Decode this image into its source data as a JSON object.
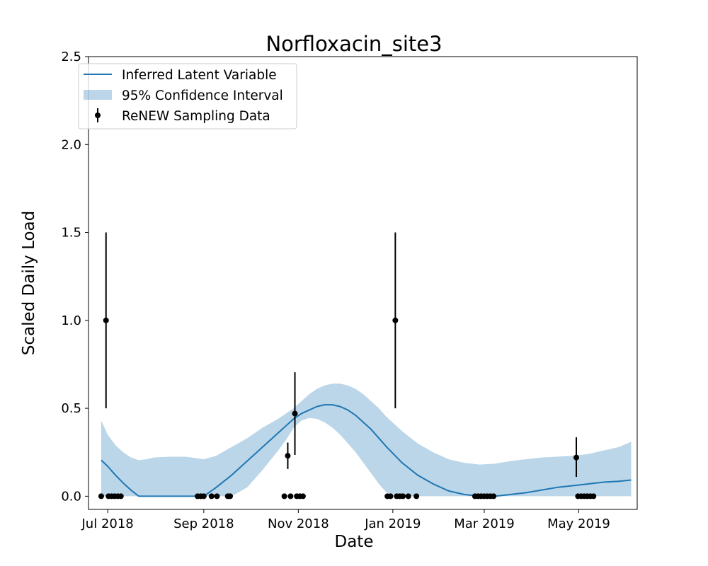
{
  "chart_data": {
    "type": "line",
    "title": "Norfloxacin_site3",
    "xlabel": "Date",
    "ylabel": "Scaled Daily Load",
    "grid": false,
    "legend_position": "top-left",
    "x_unit": "days since 2018-07-01",
    "xlim": [
      -12.4,
      341.7
    ],
    "ylim": [
      -0.075,
      2.5
    ],
    "x_ticks": [
      {
        "value": 0,
        "label": "Jul 2018"
      },
      {
        "value": 62,
        "label": "Sep 2018"
      },
      {
        "value": 123,
        "label": "Nov 2018"
      },
      {
        "value": 184,
        "label": "Jan 2019"
      },
      {
        "value": 243,
        "label": "Mar 2019"
      },
      {
        "value": 304,
        "label": "May 2019"
      }
    ],
    "y_ticks": [
      {
        "value": 0.0,
        "label": "0.0"
      },
      {
        "value": 0.5,
        "label": "0.5"
      },
      {
        "value": 1.0,
        "label": "1.0"
      },
      {
        "value": 1.5,
        "label": "1.5"
      },
      {
        "value": 2.0,
        "label": "2.0"
      },
      {
        "value": 2.5,
        "label": "2.5"
      }
    ],
    "legend": [
      {
        "key": "latent",
        "label": "Inferred Latent Variable"
      },
      {
        "key": "ci",
        "label": "95% Confidence Interval"
      },
      {
        "key": "data",
        "label": "ReNEW Sampling Data"
      }
    ],
    "series": [
      {
        "name": "Inferred Latent Variable",
        "key": "latent",
        "color": "#1f77b4",
        "x": [
          -4.2,
          0,
          5,
          10,
          15,
          20,
          25,
          30,
          40,
          50,
          62,
          70,
          80,
          90,
          100,
          110,
          115,
          120,
          125,
          130,
          135,
          140,
          145,
          150,
          155,
          160,
          165,
          170,
          175,
          180,
          190,
          200,
          210,
          220,
          230,
          240,
          250,
          260,
          270,
          280,
          290,
          300,
          310,
          320,
          330,
          337.8
        ],
        "y": [
          0.205,
          0.17,
          0.12,
          0.075,
          0.035,
          0.0,
          0.0,
          0.0,
          0.0,
          0.0,
          0.0,
          0.05,
          0.12,
          0.2,
          0.28,
          0.36,
          0.4,
          0.44,
          0.47,
          0.49,
          0.51,
          0.52,
          0.52,
          0.51,
          0.49,
          0.46,
          0.42,
          0.38,
          0.33,
          0.28,
          0.19,
          0.12,
          0.07,
          0.03,
          0.01,
          0.0,
          0.0,
          0.01,
          0.02,
          0.035,
          0.05,
          0.06,
          0.07,
          0.08,
          0.085,
          0.092
        ]
      },
      {
        "name": "95% Confidence Interval",
        "key": "ci",
        "color": "#1f77b4",
        "opacity": 0.3,
        "x": [
          -4.2,
          0,
          5,
          10,
          15,
          20,
          25,
          30,
          40,
          50,
          62,
          70,
          80,
          90,
          100,
          110,
          115,
          120,
          125,
          130,
          135,
          140,
          145,
          150,
          155,
          160,
          165,
          170,
          175,
          180,
          190,
          200,
          210,
          220,
          230,
          240,
          250,
          260,
          270,
          280,
          290,
          300,
          310,
          320,
          330,
          337.8
        ],
        "lower": [
          0.0,
          0.0,
          0.0,
          0.0,
          0.0,
          0.0,
          0.0,
          0.0,
          0.0,
          0.0,
          0.0,
          0.0,
          0.0,
          0.05,
          0.15,
          0.26,
          0.32,
          0.39,
          0.43,
          0.445,
          0.44,
          0.42,
          0.39,
          0.35,
          0.3,
          0.25,
          0.19,
          0.13,
          0.07,
          0.02,
          0.0,
          0.0,
          0.0,
          0.0,
          0.0,
          0.0,
          0.0,
          0.0,
          0.0,
          0.0,
          0.0,
          0.0,
          0.0,
          0.0,
          0.0,
          0.0
        ],
        "upper": [
          0.43,
          0.35,
          0.29,
          0.25,
          0.22,
          0.205,
          0.21,
          0.22,
          0.225,
          0.225,
          0.21,
          0.23,
          0.28,
          0.33,
          0.39,
          0.44,
          0.47,
          0.5,
          0.54,
          0.58,
          0.61,
          0.63,
          0.64,
          0.64,
          0.63,
          0.61,
          0.58,
          0.54,
          0.5,
          0.45,
          0.37,
          0.3,
          0.25,
          0.21,
          0.19,
          0.18,
          0.185,
          0.2,
          0.21,
          0.22,
          0.225,
          0.23,
          0.24,
          0.26,
          0.28,
          0.31
        ]
      },
      {
        "name": "ReNEW Sampling Data",
        "key": "data",
        "color": "#000000",
        "points": [
          {
            "x": -4.2,
            "y": 0.0
          },
          {
            "x": -1.1,
            "y": 1.0,
            "err_low": 0.5,
            "err_high": 1.5
          },
          {
            "x": 0.5,
            "y": 0.0
          },
          {
            "x": 2.5,
            "y": 0.0
          },
          {
            "x": 4.5,
            "y": 0.0
          },
          {
            "x": 6.5,
            "y": 0.0
          },
          {
            "x": 8.5,
            "y": 0.0
          },
          {
            "x": 58.0,
            "y": 0.0
          },
          {
            "x": 60.0,
            "y": 0.0
          },
          {
            "x": 62.0,
            "y": 0.0
          },
          {
            "x": 67.0,
            "y": 0.0
          },
          {
            "x": 70.5,
            "y": 0.0
          },
          {
            "x": 77.5,
            "y": 0.0
          },
          {
            "x": 79.0,
            "y": 0.0
          },
          {
            "x": 114.0,
            "y": 0.0
          },
          {
            "x": 116.2,
            "y": 0.23,
            "err_low": 0.155,
            "err_high": 0.305
          },
          {
            "x": 118.0,
            "y": 0.0
          },
          {
            "x": 120.8,
            "y": 0.47,
            "err_low": 0.235,
            "err_high": 0.705
          },
          {
            "x": 122.0,
            "y": 0.0
          },
          {
            "x": 124.0,
            "y": 0.0
          },
          {
            "x": 126.0,
            "y": 0.0
          },
          {
            "x": 180.5,
            "y": 0.0
          },
          {
            "x": 182.5,
            "y": 0.0
          },
          {
            "x": 185.6,
            "y": 1.0,
            "err_low": 0.5,
            "err_high": 1.5
          },
          {
            "x": 186.5,
            "y": 0.0
          },
          {
            "x": 188.5,
            "y": 0.0
          },
          {
            "x": 190.5,
            "y": 0.0
          },
          {
            "x": 194.0,
            "y": 0.0
          },
          {
            "x": 199.2,
            "y": 0.0
          },
          {
            "x": 237.0,
            "y": 0.0
          },
          {
            "x": 239.0,
            "y": 0.0
          },
          {
            "x": 241.0,
            "y": 0.0
          },
          {
            "x": 243.0,
            "y": 0.0
          },
          {
            "x": 245.0,
            "y": 0.0
          },
          {
            "x": 247.0,
            "y": 0.0
          },
          {
            "x": 249.0,
            "y": 0.0
          },
          {
            "x": 302.4,
            "y": 0.22,
            "err_low": 0.11,
            "err_high": 0.335
          },
          {
            "x": 303.5,
            "y": 0.0
          },
          {
            "x": 305.5,
            "y": 0.0
          },
          {
            "x": 307.5,
            "y": 0.0
          },
          {
            "x": 309.5,
            "y": 0.0
          },
          {
            "x": 311.5,
            "y": 0.0
          },
          {
            "x": 313.5,
            "y": 0.0
          }
        ]
      }
    ]
  }
}
